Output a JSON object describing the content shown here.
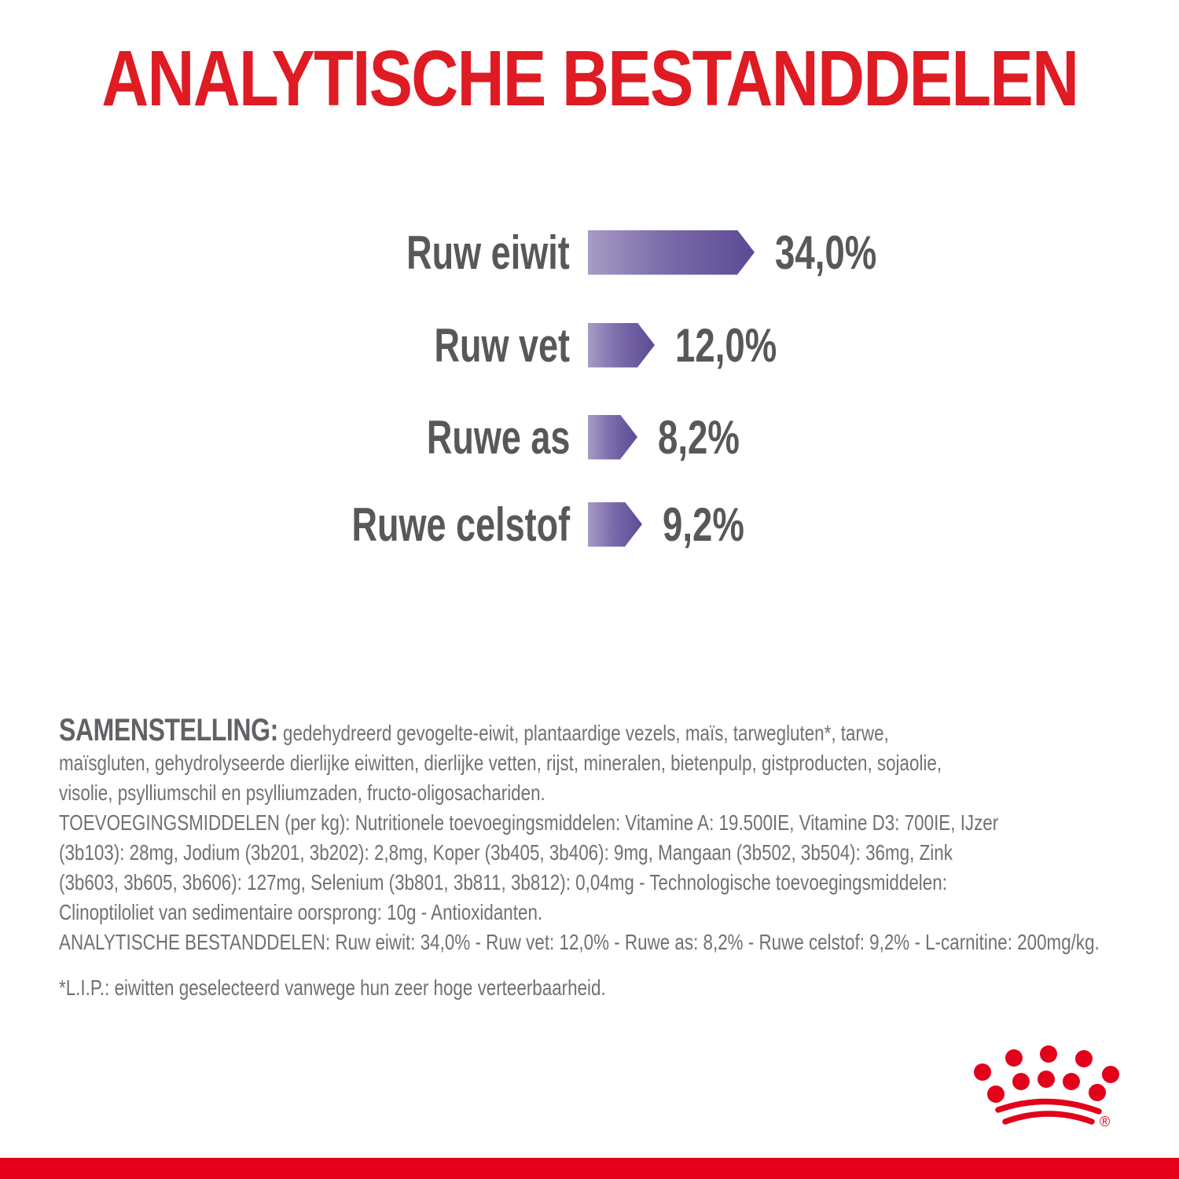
{
  "title": "ANALYTISCHE BESTANDDELEN",
  "chart_data": {
    "type": "bar",
    "orientation": "horizontal",
    "title": "ANALYTISCHE BESTANDDELEN",
    "categories": [
      "Ruw eiwit",
      "Ruw vet",
      "Ruwe as",
      "Ruwe celstof"
    ],
    "values": [
      34.0,
      12.0,
      8.2,
      9.2
    ],
    "value_labels": [
      "34,0%",
      "12,0%",
      "8,2%",
      "9,2%"
    ],
    "unit": "%",
    "bar_shape": "right-pointing-arrow",
    "bar_gradient": [
      "#a89bc5",
      "#5c4a94"
    ],
    "label_color": "#58585a",
    "grid": false,
    "legend": false
  },
  "text_block": {
    "heading": "SAMENSTELLING:",
    "lines": [
      " gedehydreerd gevogelte-eiwit, plantaardige vezels, maïs, tarwegluten*, tarwe,",
      "maïsgluten, gehydrolyseerde dierlijke eiwitten, dierlijke vetten, rijst, mineralen, bietenpulp, gistproducten, sojaolie,",
      "visolie, psylliumschil en psylliumzaden, fructo-oligosachariden.",
      "TOEVOEGINGSMIDDELEN (per kg): Nutritionele toevoegingsmiddelen: Vitamine A: 19.500IE, Vitamine D3: 700IE, IJzer",
      "(3b103): 28mg, Jodium (3b201, 3b202): 2,8mg, Koper (3b405, 3b406): 9mg, Mangaan (3b502, 3b504): 36mg, Zink",
      "(3b603, 3b605, 3b606): 127mg, Selenium (3b801, 3b811, 3b812): 0,04mg - Technologische toevoegingsmiddelen:",
      "Clinoptiloliet van sedimentaire oorsprong: 10g - Antioxidanten.",
      "ANALYTISCHE BESTANDDELEN: Ruw eiwit: 34,0% - Ruw vet: 12,0% - Ruwe as: 8,2% - Ruwe celstof: 9,2% - L-carnitine: 200mg/kg."
    ],
    "footnote": "*L.I.P.: eiwitten geselecteerd vanwege hun zeer hoge verteerbaarheid."
  },
  "logo": {
    "name": "royal-canin-crown",
    "registered_mark": "®",
    "color": "#e2001a"
  },
  "colors": {
    "brand_red": "#e2001a",
    "title_red": "#df1b23",
    "chart_text_gray": "#58585a",
    "body_text_gray": "#707174",
    "bar_gradient_start": "#a89bc5",
    "bar_gradient_end": "#5c4a94"
  }
}
